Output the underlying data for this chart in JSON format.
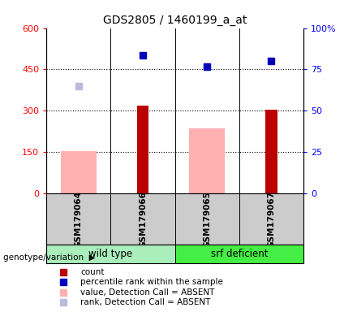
{
  "title": "GDS2805 / 1460199_a_at",
  "samples": [
    "GSM179064",
    "GSM179066",
    "GSM179065",
    "GSM179067"
  ],
  "count_values": [
    null,
    320,
    null,
    305
  ],
  "count_color": "#bb0000",
  "value_absent": [
    155,
    null,
    235,
    null
  ],
  "value_absent_color": "#ffb0b0",
  "rank_absent_left_scale": [
    390,
    null,
    460,
    null
  ],
  "rank_absent_color": "#bbbbdd",
  "percentile_left_scale": [
    null,
    500,
    460,
    480
  ],
  "percentile_color": "#0000bb",
  "ylim_left": [
    0,
    600
  ],
  "ylim_right": [
    0,
    100
  ],
  "yticks_left": [
    0,
    150,
    300,
    450,
    600
  ],
  "yticks_right": [
    0,
    25,
    50,
    75,
    100
  ],
  "ytick_labels_left": [
    "0",
    "150",
    "300",
    "450",
    "600"
  ],
  "ytick_labels_right": [
    "0",
    "25",
    "50",
    "75",
    "100%"
  ],
  "hlines": [
    150,
    300,
    450
  ],
  "group_names": [
    "wild type",
    "srf deficient"
  ],
  "group_ranges": [
    [
      0,
      1
    ],
    [
      2,
      3
    ]
  ],
  "group_light_color": "#aaeebb",
  "group_dark_color": "#44ee44",
  "legend_items": [
    {
      "label": "count",
      "color": "#bb0000"
    },
    {
      "label": "percentile rank within the sample",
      "color": "#0000bb"
    },
    {
      "label": "value, Detection Call = ABSENT",
      "color": "#ffb0b0"
    },
    {
      "label": "rank, Detection Call = ABSENT",
      "color": "#bbbbdd"
    }
  ]
}
